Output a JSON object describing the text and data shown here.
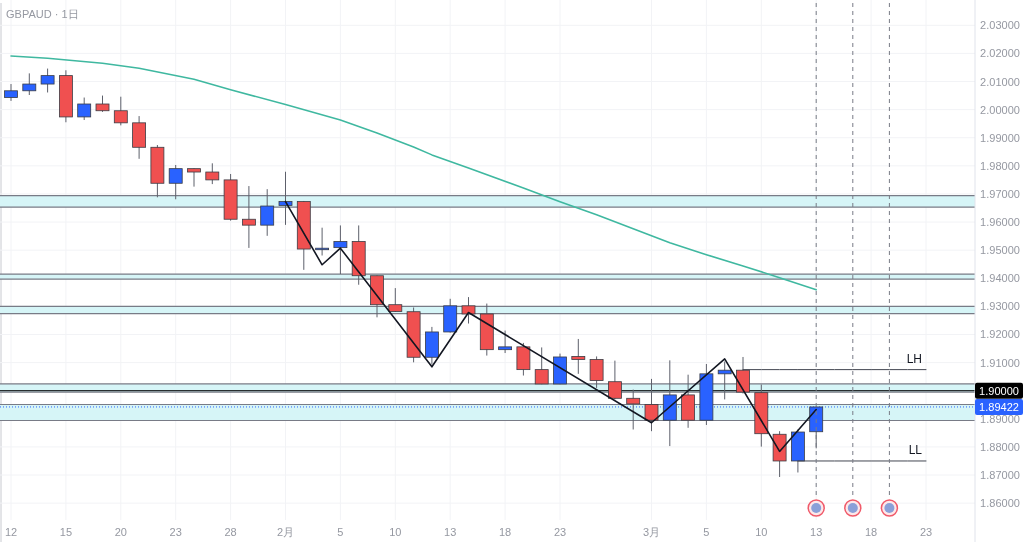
{
  "chart_data": {
    "type": "candlestick",
    "title": "GBPAUD · 1日",
    "categories": [
      "12",
      null,
      null,
      "15",
      null,
      null,
      "20",
      null,
      null,
      "23",
      null,
      null,
      "28",
      null,
      null,
      "2月",
      null,
      null,
      "5",
      null,
      null,
      "10",
      null,
      null,
      "13",
      null,
      null,
      "18",
      null,
      null,
      "23",
      null,
      null,
      null,
      null,
      "3月",
      null,
      null,
      "5",
      null,
      null,
      "10",
      null,
      null,
      "13",
      null,
      null,
      "18",
      null,
      null,
      "23"
    ],
    "ohlc": [
      [
        2.0043,
        2.0091,
        2.0031,
        2.0067
      ],
      [
        2.0067,
        2.0129,
        2.0052,
        2.0091
      ],
      [
        2.0091,
        2.0146,
        2.0061,
        2.0121
      ],
      [
        2.0121,
        2.014,
        1.9955,
        1.9974
      ],
      [
        1.9974,
        2.0043,
        1.9963,
        2.002
      ],
      [
        2.002,
        2.005,
        1.9992,
        1.9996
      ],
      [
        1.9996,
        2.0046,
        1.9944,
        1.9953
      ],
      [
        1.9953,
        1.9977,
        1.9825,
        1.9866
      ],
      [
        1.9866,
        1.9874,
        1.9688,
        1.9738
      ],
      [
        1.9738,
        1.9803,
        1.9681,
        1.979
      ],
      [
        1.979,
        1.9791,
        1.9726,
        1.9778
      ],
      [
        1.9778,
        1.9809,
        1.9735,
        1.975
      ],
      [
        1.975,
        1.9771,
        1.9605,
        1.961
      ],
      [
        1.961,
        1.9728,
        1.9508,
        1.9589
      ],
      [
        1.9589,
        1.9717,
        1.9551,
        1.9657
      ],
      [
        1.9659,
        1.9779,
        1.959,
        1.9673
      ],
      [
        1.9673,
        1.9675,
        1.943,
        1.9504
      ],
      [
        1.9504,
        1.958,
        1.9481,
        1.9507
      ],
      [
        1.9509,
        1.9588,
        1.9415,
        1.9531
      ],
      [
        1.9531,
        1.9588,
        1.9377,
        1.9409
      ],
      [
        1.9409,
        1.941,
        1.9261,
        1.9306
      ],
      [
        1.9306,
        1.9365,
        1.928,
        1.9282
      ],
      [
        1.9281,
        1.9296,
        1.9101,
        1.9119
      ],
      [
        1.9119,
        1.9227,
        1.9093,
        1.9209
      ],
      [
        1.9209,
        1.9327,
        1.9207,
        1.9302
      ],
      [
        1.9302,
        1.9333,
        1.9239,
        1.9273
      ],
      [
        1.9273,
        1.931,
        1.9125,
        1.9146
      ],
      [
        1.9146,
        1.9214,
        1.9134,
        1.9156
      ],
      [
        1.9156,
        1.917,
        1.9054,
        1.9075
      ],
      [
        1.9075,
        1.9154,
        1.9023,
        1.9024
      ],
      [
        1.9024,
        1.9132,
        1.9023,
        1.912
      ],
      [
        1.9122,
        1.9184,
        1.906,
        1.9111
      ],
      [
        1.9111,
        1.9122,
        1.901,
        1.9036
      ],
      [
        1.9032,
        1.9107,
        1.8969,
        1.8973
      ],
      [
        1.8973,
        1.9004,
        1.8862,
        1.8953
      ],
      [
        1.8951,
        1.9042,
        1.8856,
        1.8895
      ],
      [
        1.8895,
        1.9108,
        1.8803,
        1.8985
      ],
      [
        1.8985,
        1.9057,
        1.8868,
        1.8895
      ],
      [
        1.8895,
        1.9095,
        1.8878,
        1.906
      ],
      [
        1.906,
        1.9104,
        1.8969,
        1.9073
      ],
      [
        1.9073,
        1.912,
        1.899,
        1.8995
      ],
      [
        1.8993,
        1.9022,
        1.8801,
        1.8847
      ],
      [
        1.8845,
        1.8856,
        1.8693,
        1.875
      ],
      [
        1.875,
        1.8862,
        1.8709,
        1.8853
      ],
      [
        1.8854,
        1.8945,
        1.8795,
        1.89422
      ],
      null,
      null,
      null,
      null,
      null,
      null
    ],
    "colors": [
      "#2962ff",
      "#2962ff",
      "#2962ff",
      "#f05050",
      "#2962ff",
      "#f05050",
      "#f05050",
      "#f05050",
      "#f05050",
      "#2962ff",
      "#f05050",
      "#f05050",
      "#f05050",
      "#f05050",
      "#2962ff",
      "#2962ff",
      "#f05050",
      "#2962ff",
      "#2962ff",
      "#f05050",
      "#f05050",
      "#f05050",
      "#f05050",
      "#2962ff",
      "#2962ff",
      "#f05050",
      "#f05050",
      "#2962ff",
      "#f05050",
      "#f05050",
      "#2962ff",
      "#f05050",
      "#f05050",
      "#f05050",
      "#f05050",
      "#f05050",
      "#2962ff",
      "#f05050",
      "#2962ff",
      "#2962ff",
      "#f05050",
      "#f05050",
      "#f05050",
      "#2962ff",
      "#2962ff",
      null,
      null,
      null,
      null,
      null,
      null
    ],
    "series": [
      {
        "type": "line",
        "color": "#3fb8a0",
        "values": [
          2.0191,
          null,
          2.0183,
          null,
          null,
          2.0165,
          null,
          2.0147,
          null,
          null,
          2.0108,
          null,
          2.0071,
          null,
          null,
          2.0018,
          null,
          null,
          1.9963,
          null,
          1.9917,
          null,
          1.9867,
          1.9839,
          null,
          1.9792,
          null,
          null,
          1.9721,
          null,
          1.9672,
          null,
          1.9626,
          null,
          1.9576,
          null,
          1.9526,
          null,
          1.9484,
          null,
          1.9444,
          null,
          1.9402,
          null,
          1.9359,
          null,
          null,
          null,
          null,
          null,
          null
        ]
      },
      {
        "type": "line",
        "color": "#131722",
        "values": [
          null,
          null,
          null,
          null,
          null,
          null,
          null,
          null,
          null,
          null,
          null,
          null,
          null,
          null,
          null,
          1.9673,
          null,
          1.9448,
          1.9507,
          null,
          null,
          null,
          null,
          1.9085,
          null,
          1.9278,
          null,
          null,
          null,
          null,
          null,
          null,
          null,
          null,
          null,
          1.8886,
          null,
          null,
          null,
          1.9113,
          null,
          null,
          1.8784,
          null,
          1.8933,
          null,
          null,
          null,
          null,
          null,
          null
        ]
      },
      {
        "type": "line",
        "name": "LH",
        "color": "#434651",
        "values": [
          null,
          null,
          null,
          null,
          null,
          null,
          null,
          null,
          null,
          null,
          null,
          null,
          null,
          null,
          null,
          null,
          null,
          null,
          null,
          null,
          null,
          null,
          null,
          null,
          null,
          null,
          null,
          null,
          null,
          null,
          null,
          null,
          null,
          null,
          null,
          null,
          null,
          null,
          null,
          null,
          1.9075,
          1.9075,
          1.9075,
          1.9075,
          1.9075,
          1.9075,
          1.9075,
          1.9075,
          1.9075,
          1.9075,
          1.9075
        ]
      },
      {
        "type": "line",
        "name": "LL",
        "color": "#434651",
        "values": [
          null,
          null,
          null,
          null,
          null,
          null,
          null,
          null,
          null,
          null,
          null,
          null,
          null,
          null,
          null,
          null,
          null,
          null,
          null,
          null,
          null,
          null,
          null,
          null,
          null,
          null,
          null,
          null,
          null,
          null,
          null,
          null,
          null,
          null,
          null,
          null,
          null,
          null,
          null,
          null,
          null,
          null,
          null,
          1.875,
          1.875,
          1.875,
          1.875,
          1.875,
          1.875,
          1.875,
          1.875
        ]
      }
    ],
    "bands": [
      {
        "axis": "y",
        "from": 1.9653,
        "to": 1.9694,
        "color": "#d6f5f7"
      },
      {
        "axis": "y",
        "from": 1.9397,
        "to": 1.9415,
        "color": "#d6f5f7"
      },
      {
        "axis": "y",
        "from": 1.9274,
        "to": 1.93,
        "color": "#d6f5f7"
      },
      {
        "axis": "y",
        "from": 1.8995,
        "to": 1.9024,
        "color": "#d6f5f7"
      },
      {
        "axis": "y",
        "from": 1.8894,
        "to": 1.8951,
        "color": "#d6f5f7"
      }
    ],
    "ref_lines": [
      {
        "axis": "y",
        "value": 1.9,
        "label": "1.90000",
        "color": "#000000",
        "line_style": "solid"
      },
      {
        "axis": "y",
        "value": 1.89422,
        "label": "1.89422",
        "color": "#2962ff",
        "line_style": "dotted"
      }
    ],
    "ylim": [
      1.854,
      2.039
    ],
    "yticks": [
      {
        "value": 1.86,
        "label": "1.86000"
      },
      {
        "value": 1.87,
        "label": "1.87000"
      },
      {
        "value": 1.88,
        "label": "1.88000"
      },
      {
        "value": 1.89,
        "label": "1.89000"
      },
      {
        "value": 1.91,
        "label": "1.91000"
      },
      {
        "value": 1.92,
        "label": "1.92000"
      },
      {
        "value": 1.93,
        "label": "1.93000"
      },
      {
        "value": 1.94,
        "label": "1.94000"
      },
      {
        "value": 1.95,
        "label": "1.95000"
      },
      {
        "value": 1.96,
        "label": "1.96000"
      },
      {
        "value": 1.97,
        "label": "1.97000"
      },
      {
        "value": 1.98,
        "label": "1.98000"
      },
      {
        "value": 1.99,
        "label": "1.99000"
      },
      {
        "value": 2.0,
        "label": "2.00000"
      },
      {
        "value": 2.01,
        "label": "2.01000"
      },
      {
        "value": 2.02,
        "label": "2.02000"
      },
      {
        "value": 2.03,
        "label": "2.03000"
      }
    ],
    "grid": true
  }
}
